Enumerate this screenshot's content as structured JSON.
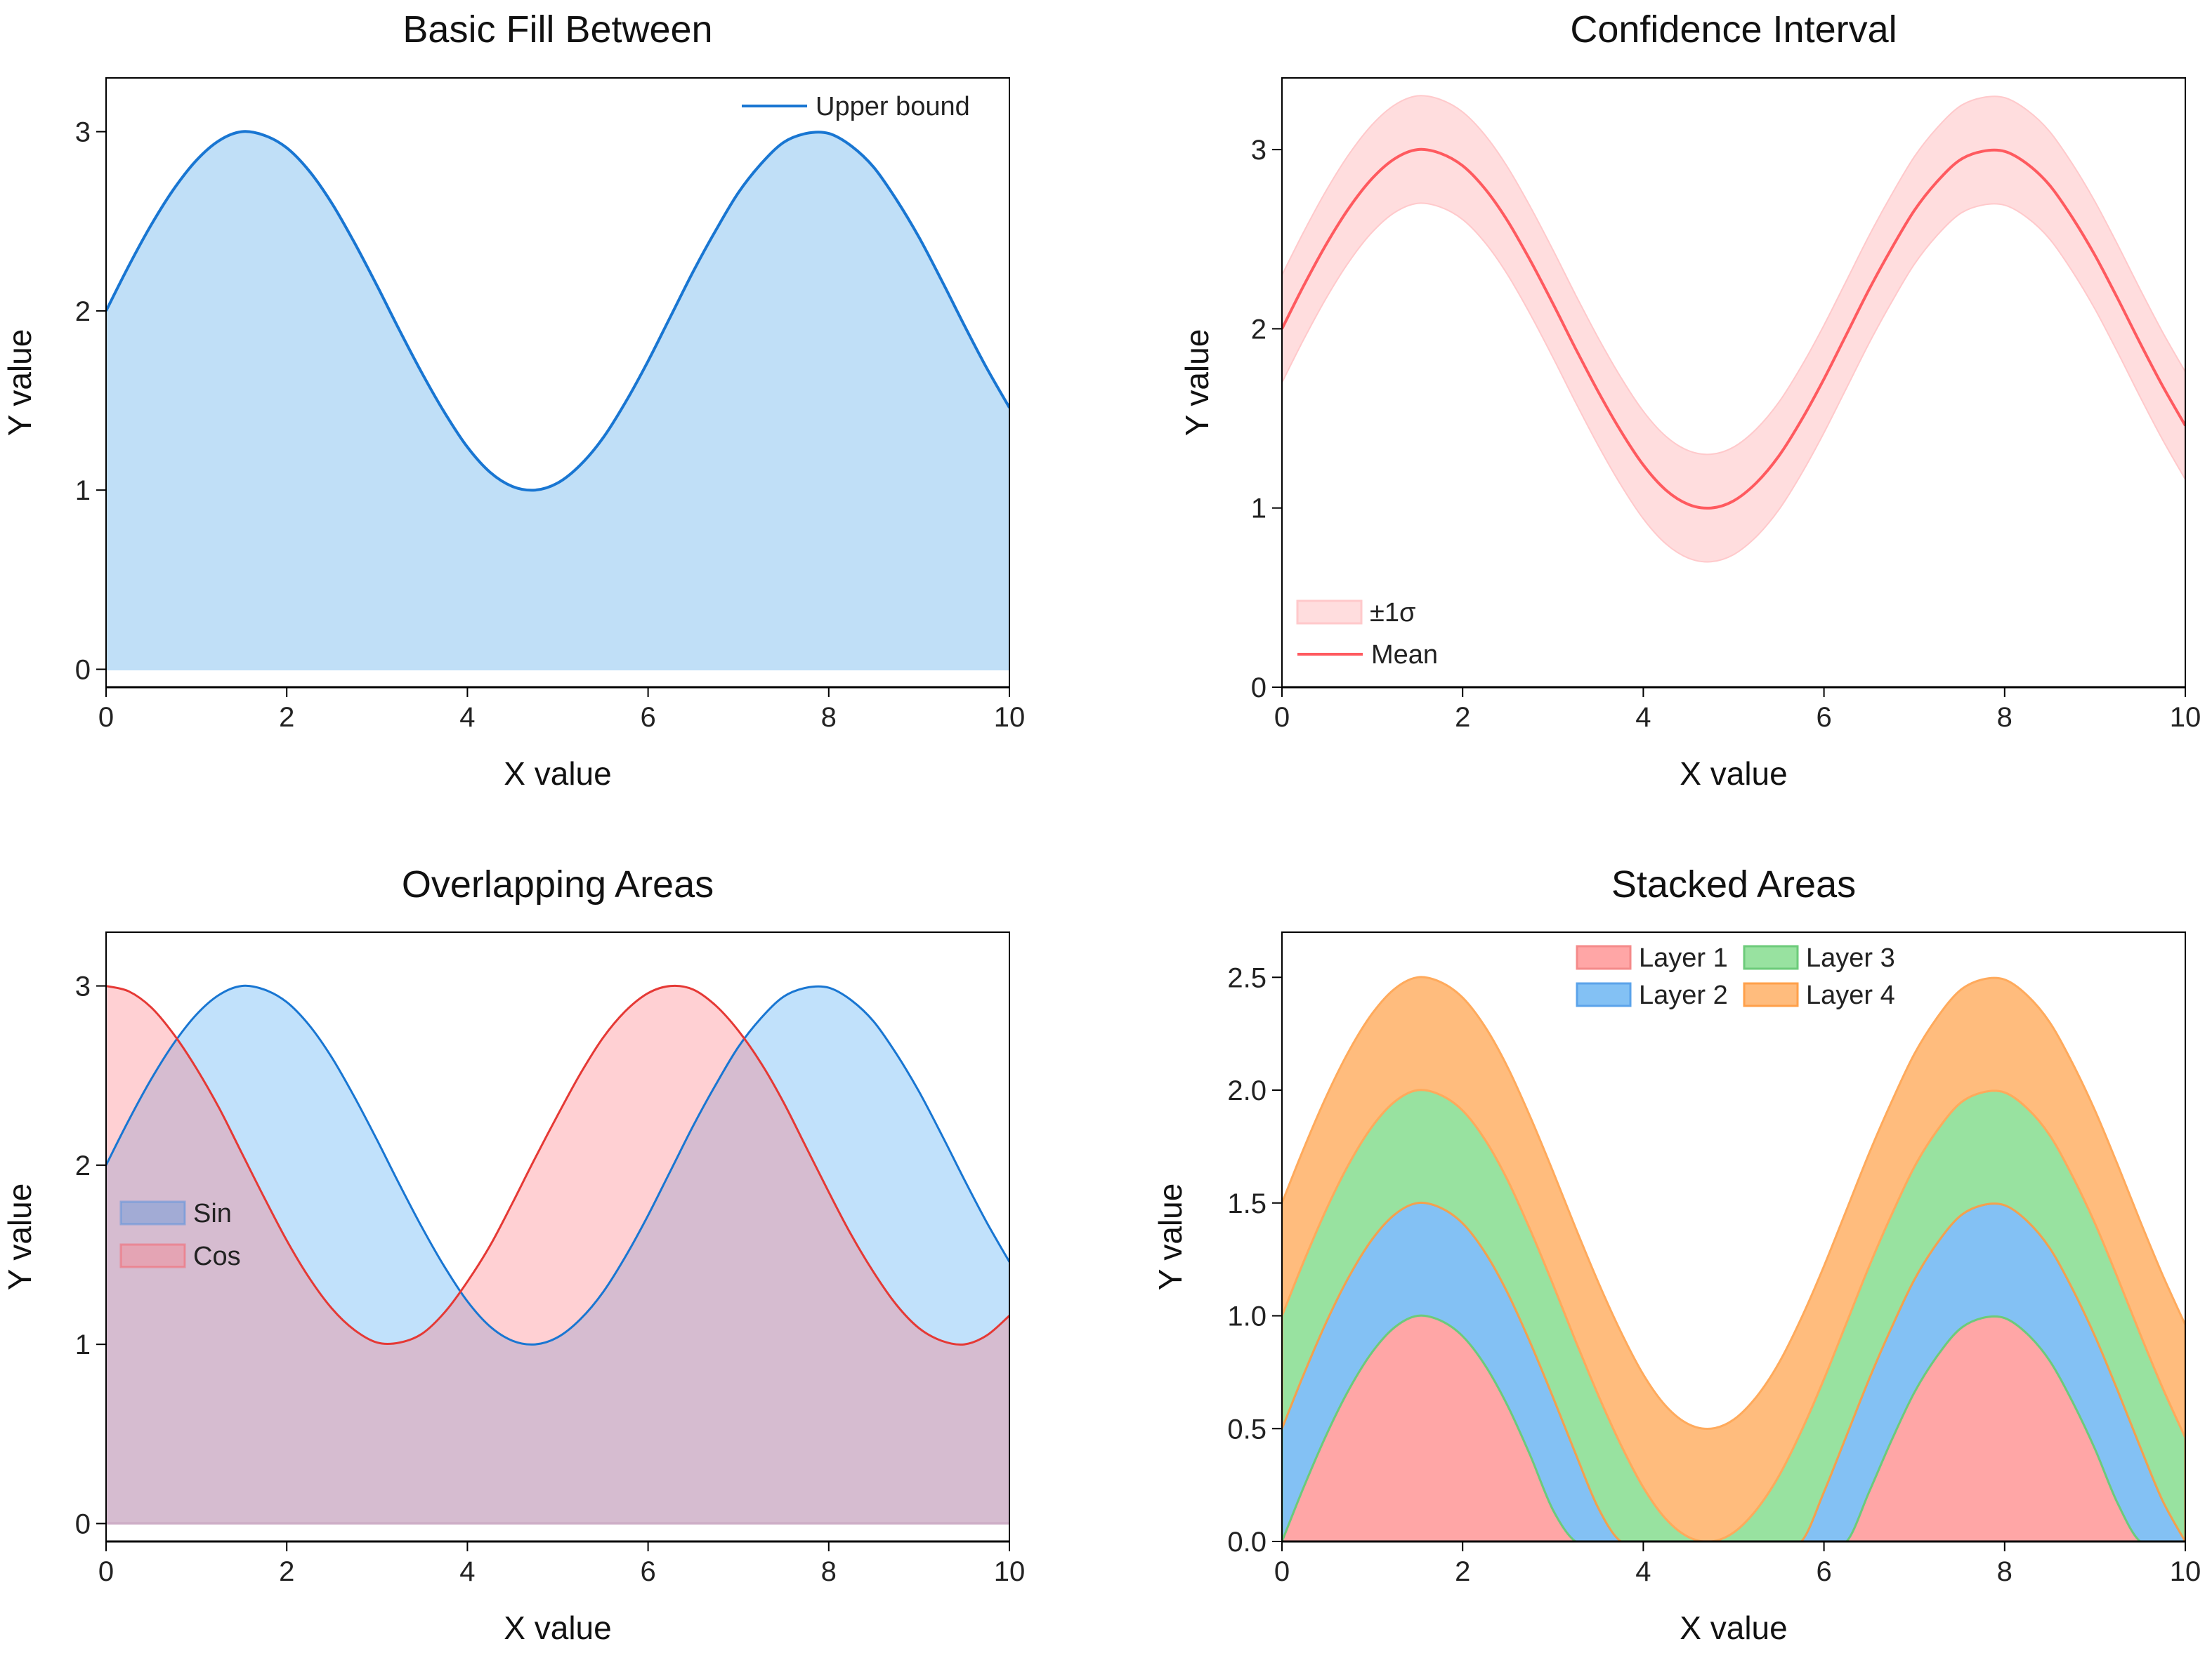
{
  "chart_data": [
    {
      "id": "basic",
      "type": "area",
      "title": "Basic Fill Between",
      "xlabel": "X value",
      "ylabel": "Y value",
      "xlim": [
        0,
        10
      ],
      "ylim": [
        -0.1,
        3.3
      ],
      "xticks": [
        0,
        2,
        4,
        6,
        8,
        10
      ],
      "xtick_labels": [
        "0",
        "2",
        "4",
        "6",
        "8",
        "10"
      ],
      "yticks": [
        0,
        1,
        2,
        3
      ],
      "ytick_labels": [
        "0",
        "1",
        "2",
        "3"
      ],
      "legend_position": "upper-right",
      "x": [
        0,
        0.25,
        0.5,
        0.75,
        1,
        1.25,
        1.5,
        1.75,
        2,
        2.25,
        2.5,
        2.75,
        3,
        3.25,
        3.5,
        3.75,
        4,
        4.25,
        4.5,
        4.75,
        5,
        5.25,
        5.5,
        5.75,
        6,
        6.25,
        6.5,
        6.75,
        7,
        7.25,
        7.5,
        7.75,
        8,
        8.25,
        8.5,
        8.75,
        9,
        9.25,
        9.5,
        9.75,
        10
      ],
      "series": [
        {
          "name": "Upper bound",
          "line_color": "#1976D2",
          "fill_color": "#C0DFF7",
          "fill_to": 0,
          "values": [
            2,
            2.25,
            2.48,
            2.68,
            2.84,
            2.95,
            3.0,
            2.98,
            2.91,
            2.78,
            2.6,
            2.38,
            2.14,
            1.89,
            1.65,
            1.43,
            1.24,
            1.1,
            1.02,
            1.0,
            1.04,
            1.14,
            1.29,
            1.49,
            1.72,
            1.97,
            2.22,
            2.45,
            2.66,
            2.82,
            2.94,
            2.99,
            2.99,
            2.92,
            2.8,
            2.62,
            2.41,
            2.17,
            1.92,
            1.68,
            1.46
          ]
        }
      ]
    },
    {
      "id": "ci",
      "type": "line",
      "title": "Confidence Interval",
      "xlabel": "X value",
      "ylabel": "Y value",
      "xlim": [
        0,
        10
      ],
      "ylim": [
        0,
        3.4
      ],
      "xticks": [
        0,
        2,
        4,
        6,
        8,
        10
      ],
      "xtick_labels": [
        "0",
        "2",
        "4",
        "6",
        "8",
        "10"
      ],
      "yticks": [
        0,
        1,
        2,
        3
      ],
      "ytick_labels": [
        "0",
        "1",
        "2",
        "3"
      ],
      "legend_position": "lower-left",
      "x": [
        0,
        0.25,
        0.5,
        0.75,
        1,
        1.25,
        1.5,
        1.75,
        2,
        2.25,
        2.5,
        2.75,
        3,
        3.25,
        3.5,
        3.75,
        4,
        4.25,
        4.5,
        4.75,
        5,
        5.25,
        5.5,
        5.75,
        6,
        6.25,
        6.5,
        6.75,
        7,
        7.25,
        7.5,
        7.75,
        8,
        8.25,
        8.5,
        8.75,
        9,
        9.25,
        9.5,
        9.75,
        10
      ],
      "sigma": 0.3,
      "band": {
        "name": "±1σ",
        "fill_color": "rgba(255,120,125,0.25)",
        "edge_color": "#FFC9CB"
      },
      "series": [
        {
          "name": "Mean",
          "line_color": "#FF5A5F",
          "values": [
            2,
            2.25,
            2.48,
            2.68,
            2.84,
            2.95,
            3.0,
            2.98,
            2.91,
            2.78,
            2.6,
            2.38,
            2.14,
            1.89,
            1.65,
            1.43,
            1.24,
            1.1,
            1.02,
            1.0,
            1.04,
            1.14,
            1.29,
            1.49,
            1.72,
            1.97,
            2.22,
            2.45,
            2.66,
            2.82,
            2.94,
            2.99,
            2.99,
            2.92,
            2.8,
            2.62,
            2.41,
            2.17,
            1.92,
            1.68,
            1.46
          ]
        }
      ]
    },
    {
      "id": "overlap",
      "type": "area",
      "title": "Overlapping Areas",
      "xlabel": "X value",
      "ylabel": "Y value",
      "xlim": [
        0,
        10
      ],
      "ylim": [
        -0.1,
        3.3
      ],
      "xticks": [
        0,
        2,
        4,
        6,
        8,
        10
      ],
      "xtick_labels": [
        "0",
        "2",
        "4",
        "6",
        "8",
        "10"
      ],
      "yticks": [
        0,
        1,
        2,
        3
      ],
      "ytick_labels": [
        "0",
        "1",
        "2",
        "3"
      ],
      "legend_position": "center-left",
      "x": [
        0,
        0.25,
        0.5,
        0.75,
        1,
        1.25,
        1.5,
        1.75,
        2,
        2.25,
        2.5,
        2.75,
        3,
        3.25,
        3.5,
        3.75,
        4,
        4.25,
        4.5,
        4.75,
        5,
        5.25,
        5.5,
        5.75,
        6,
        6.25,
        6.5,
        6.75,
        7,
        7.25,
        7.5,
        7.75,
        8,
        8.25,
        8.5,
        8.75,
        9,
        9.25,
        9.5,
        9.75,
        10
      ],
      "series": [
        {
          "name": "Sin",
          "line_color": "#1976D2",
          "fill_color": "rgba(100,181,246,0.4)",
          "fill_to": 0,
          "values": [
            2,
            2.25,
            2.48,
            2.68,
            2.84,
            2.95,
            3.0,
            2.98,
            2.91,
            2.78,
            2.6,
            2.38,
            2.14,
            1.89,
            1.65,
            1.43,
            1.24,
            1.1,
            1.02,
            1.0,
            1.04,
            1.14,
            1.29,
            1.49,
            1.72,
            1.97,
            2.22,
            2.45,
            2.66,
            2.82,
            2.94,
            2.99,
            2.99,
            2.92,
            2.8,
            2.62,
            2.41,
            2.17,
            1.92,
            1.68,
            1.46
          ]
        },
        {
          "name": "Cos",
          "line_color": "#E53935",
          "fill_color": "rgba(255,120,130,0.35)",
          "fill_to": 0,
          "values": [
            3,
            2.97,
            2.88,
            2.73,
            2.54,
            2.32,
            2.07,
            1.82,
            1.58,
            1.37,
            1.2,
            1.08,
            1.01,
            1.01,
            1.06,
            1.18,
            1.35,
            1.55,
            1.79,
            2.04,
            2.28,
            2.51,
            2.71,
            2.86,
            2.96,
            3.0,
            2.98,
            2.89,
            2.75,
            2.57,
            2.35,
            2.1,
            1.85,
            1.61,
            1.4,
            1.22,
            1.09,
            1.02,
            1.0,
            1.05,
            1.16
          ]
        }
      ]
    },
    {
      "id": "stacked",
      "type": "area",
      "stacked": true,
      "values_are_cumulative_tops": true,
      "title": "Stacked Areas",
      "xlabel": "X value",
      "ylabel": "Y value",
      "xlim": [
        0,
        10
      ],
      "ylim": [
        0,
        2.7
      ],
      "xticks": [
        0,
        2,
        4,
        6,
        8,
        10
      ],
      "xtick_labels": [
        "0",
        "2",
        "4",
        "6",
        "8",
        "10"
      ],
      "yticks": [
        0,
        0.5,
        1,
        1.5,
        2,
        2.5
      ],
      "ytick_labels": [
        "0.0",
        "0.5",
        "1.0",
        "1.5",
        "2.0",
        "2.5"
      ],
      "legend_position": "upper-center",
      "x": [
        0,
        0.25,
        0.5,
        0.75,
        1,
        1.25,
        1.5,
        1.75,
        2,
        2.25,
        2.5,
        2.75,
        3,
        3.25,
        3.5,
        3.75,
        4,
        4.25,
        4.5,
        4.75,
        5,
        5.25,
        5.5,
        5.75,
        6,
        6.25,
        6.5,
        6.75,
        7,
        7.25,
        7.5,
        7.75,
        8,
        8.25,
        8.5,
        8.75,
        9,
        9.25,
        9.5,
        9.75,
        10
      ],
      "series": [
        {
          "name": "Layer 1",
          "fill_color": "#FFA6A6",
          "line_color": "#7FA0E0",
          "values": [
            0,
            0.25,
            0.48,
            0.68,
            0.84,
            0.95,
            1.0,
            0.98,
            0.91,
            0.78,
            0.6,
            0.38,
            0.14,
            0,
            0,
            0,
            0,
            0,
            0,
            0,
            0,
            0,
            0,
            0,
            0,
            0,
            0.22,
            0.45,
            0.66,
            0.82,
            0.94,
            0.99,
            0.99,
            0.92,
            0.8,
            0.62,
            0.41,
            0.17,
            0,
            0,
            0
          ]
        },
        {
          "name": "Layer 2",
          "fill_color": "#83C1F4",
          "line_color": "#6CCB7A",
          "values": [
            0.5,
            0.75,
            0.98,
            1.18,
            1.34,
            1.45,
            1.5,
            1.48,
            1.41,
            1.28,
            1.1,
            0.88,
            0.64,
            0.39,
            0.15,
            0,
            0,
            0,
            0,
            0,
            0,
            0,
            0,
            0,
            0.22,
            0.47,
            0.72,
            0.95,
            1.16,
            1.32,
            1.44,
            1.49,
            1.49,
            1.42,
            1.3,
            1.12,
            0.91,
            0.67,
            0.42,
            0.18,
            0
          ]
        },
        {
          "name": "Layer 3",
          "fill_color": "#98E2A0",
          "line_color": "#F5A04E",
          "values": [
            1,
            1.25,
            1.48,
            1.68,
            1.84,
            1.95,
            2.0,
            1.98,
            1.91,
            1.78,
            1.6,
            1.38,
            1.14,
            0.89,
            0.65,
            0.43,
            0.24,
            0.1,
            0.02,
            0,
            0.04,
            0.14,
            0.29,
            0.49,
            0.72,
            0.97,
            1.22,
            1.45,
            1.66,
            1.82,
            1.94,
            1.99,
            1.99,
            1.92,
            1.8,
            1.62,
            1.41,
            1.17,
            0.92,
            0.68,
            0.46
          ]
        },
        {
          "name": "Layer 4",
          "fill_color": "#FFBC7D",
          "line_color": "#FFAA5C",
          "values": [
            1.5,
            1.75,
            1.98,
            2.18,
            2.34,
            2.45,
            2.5,
            2.48,
            2.41,
            2.28,
            2.1,
            1.88,
            1.64,
            1.39,
            1.15,
            0.93,
            0.74,
            0.6,
            0.52,
            0.5,
            0.54,
            0.64,
            0.79,
            0.99,
            1.22,
            1.47,
            1.72,
            1.95,
            2.16,
            2.32,
            2.44,
            2.49,
            2.49,
            2.42,
            2.3,
            2.12,
            1.91,
            1.67,
            1.42,
            1.18,
            0.96
          ]
        }
      ]
    }
  ]
}
